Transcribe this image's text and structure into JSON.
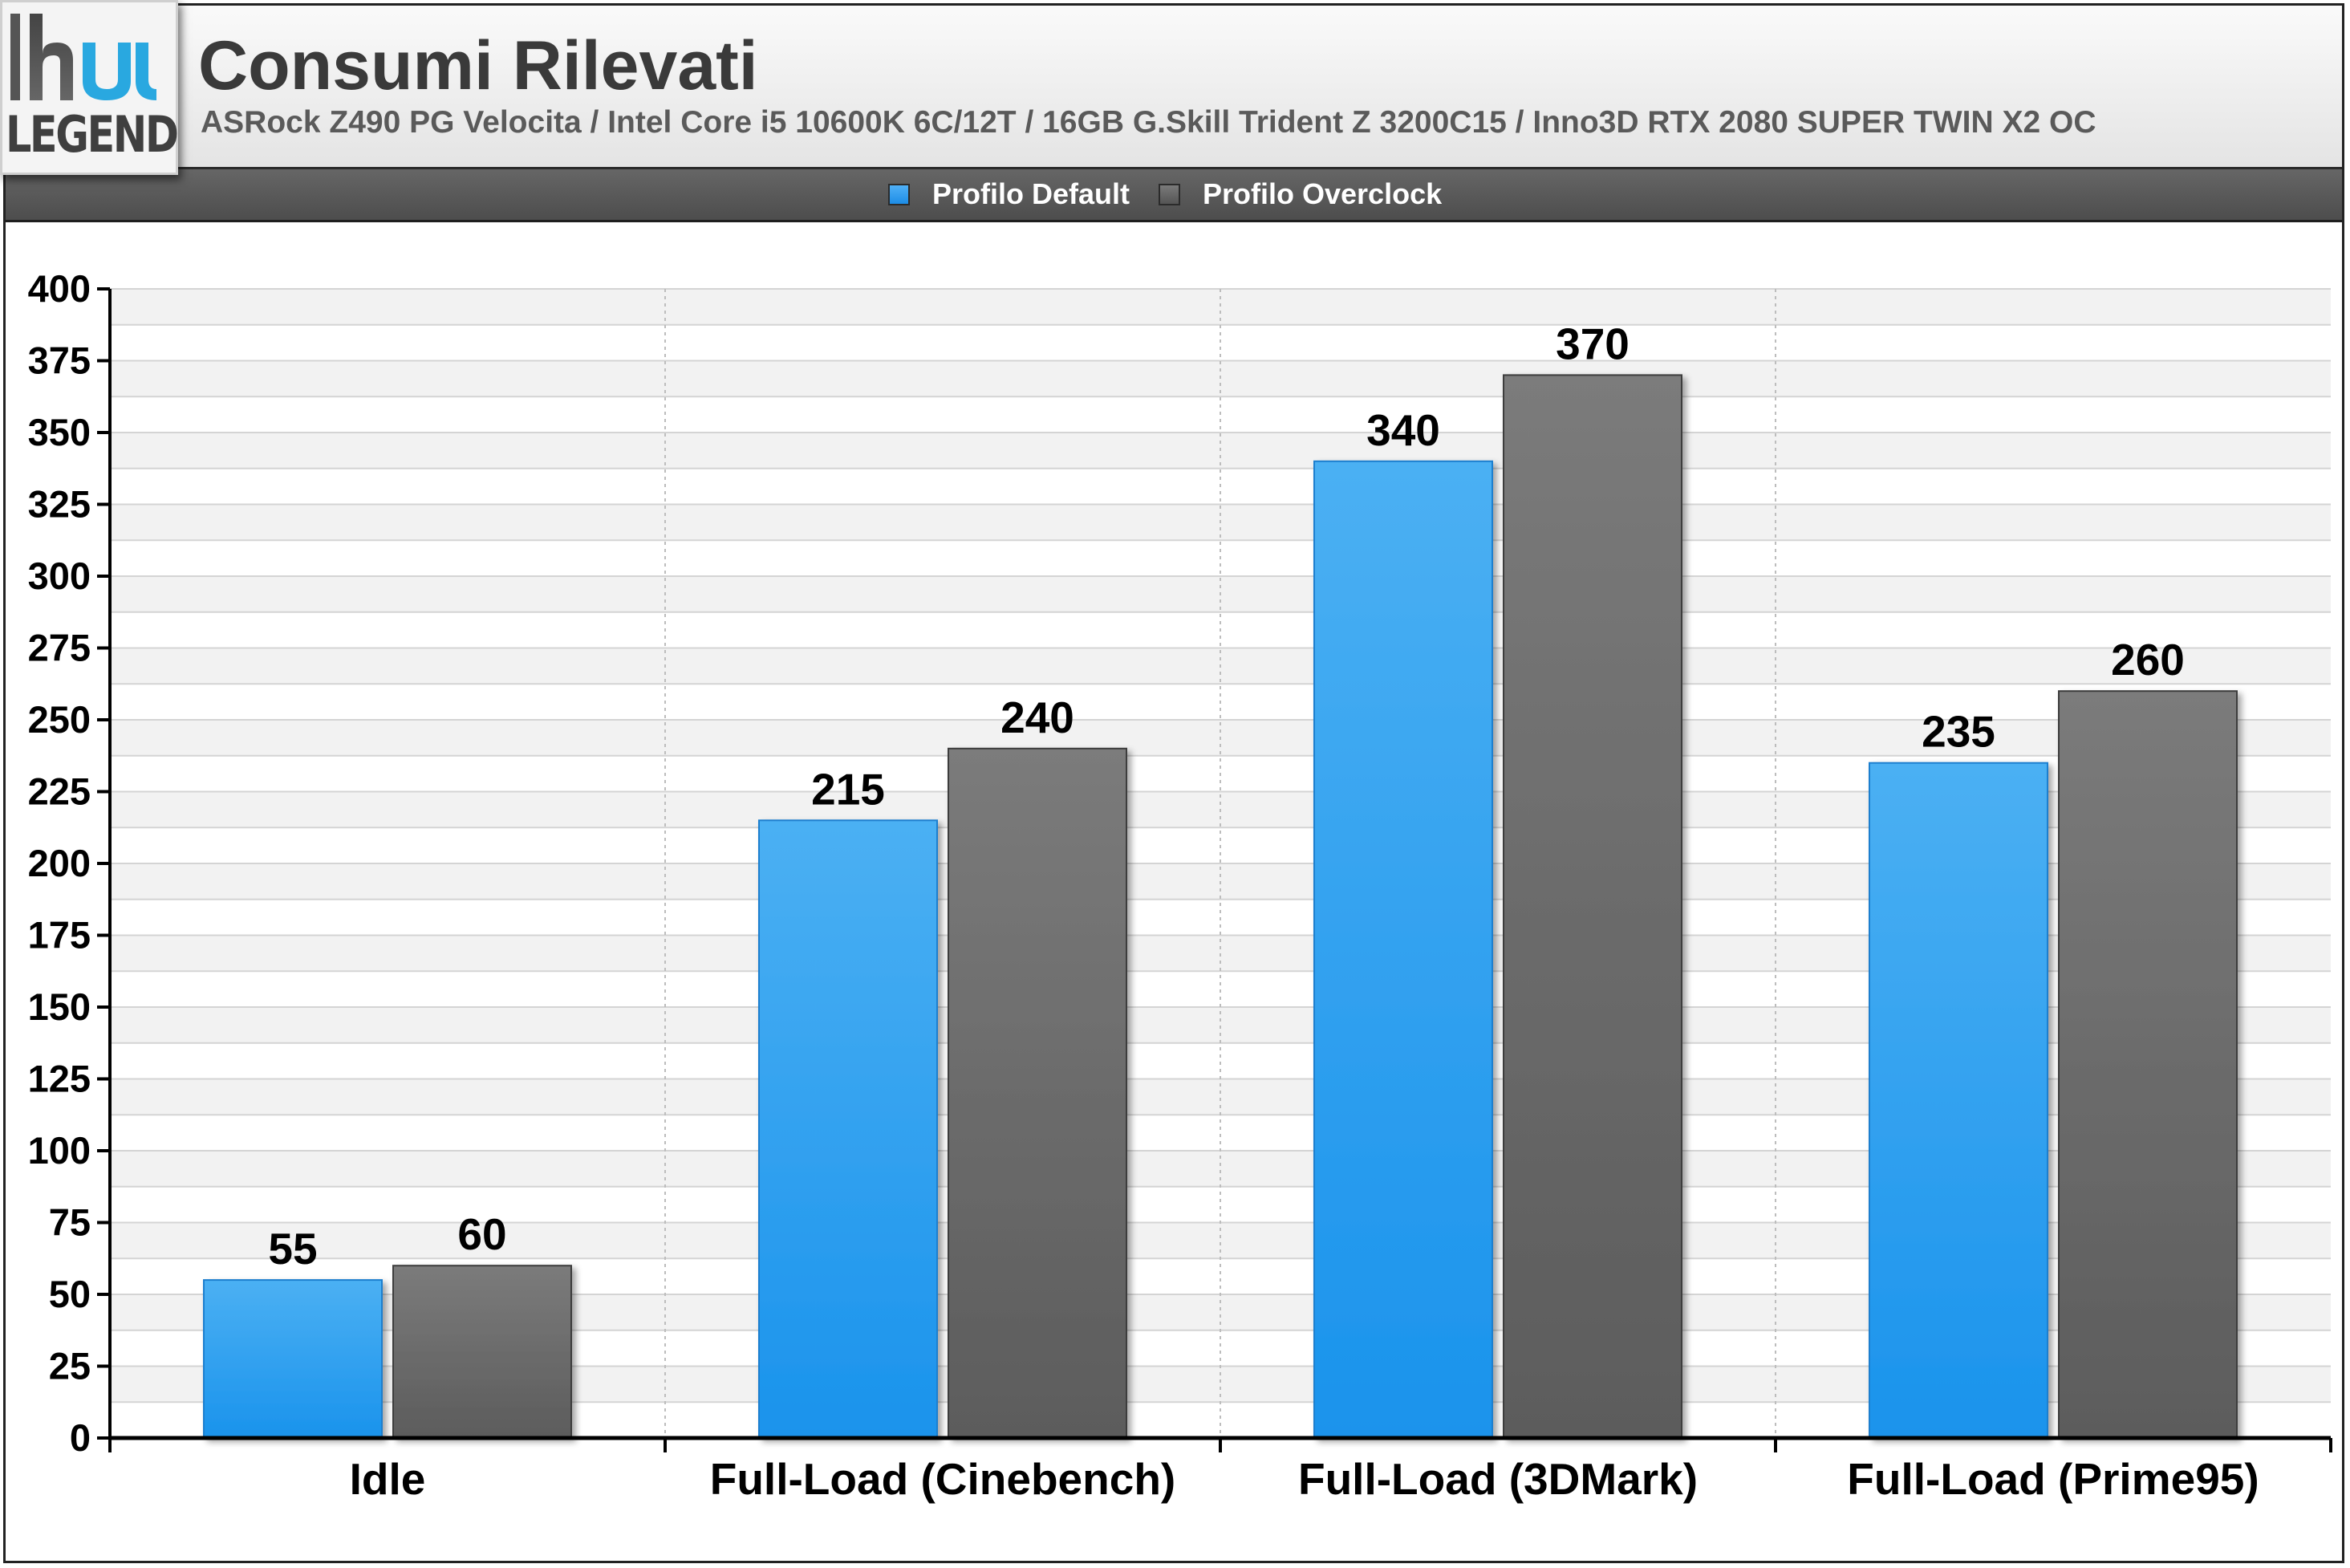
{
  "header": {
    "logo_text": "LEGEND",
    "title": "Consumi Rilevati",
    "subtitle": "ASRock Z490 PG Velocita / Intel Core i5 10600K 6C/12T / 16GB G.Skill Trident Z 3200C15 / Inno3D RTX 2080 SUPER TWIN X2 OC"
  },
  "legend": {
    "items": [
      {
        "label": "Profilo Default",
        "color": "#2196f3"
      },
      {
        "label": "Profilo Overclock",
        "color": "#606060"
      }
    ]
  },
  "chart_data": {
    "type": "bar",
    "title": "Consumi Rilevati",
    "subtitle": "ASRock Z490 PG Velocita / Intel Core i5 10600K 6C/12T / 16GB G.Skill Trident Z 3200C15 / Inno3D RTX 2080 SUPER TWIN X2 OC",
    "categories": [
      "Idle",
      "Full-Load (Cinebench)",
      "Full-Load (3DMark)",
      "Full-Load (Prime95)"
    ],
    "series": [
      {
        "name": "Profilo Default",
        "values": [
          55,
          215,
          340,
          235
        ],
        "color": "#2196f3"
      },
      {
        "name": "Profilo Overclock",
        "values": [
          60,
          240,
          370,
          260
        ],
        "color": "#606060"
      }
    ],
    "ylim": [
      0,
      400
    ],
    "yticks": [
      "0",
      "25",
      "50",
      "75",
      "100",
      "125",
      "150",
      "175",
      "200",
      "225",
      "250",
      "275",
      "300",
      "325",
      "350",
      "375",
      "400"
    ],
    "xlabel": "",
    "ylabel": "",
    "grid": true,
    "legend_position": "top-center",
    "data_labels": true
  }
}
